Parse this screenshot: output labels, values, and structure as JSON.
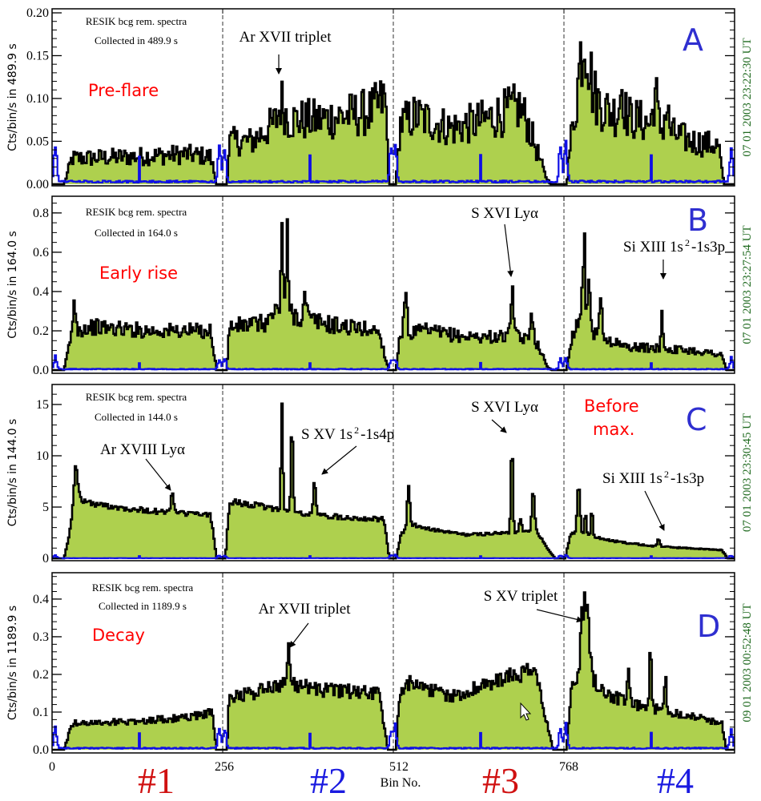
{
  "colors": {
    "fill": "#aed04e",
    "line": "#000000",
    "background": "#1010e6",
    "phase": "#ff0000",
    "letter": "#2f2fd0",
    "time": "#1f6a1f",
    "chan_odd": "#d01010",
    "chan_even": "#1a1ae0"
  },
  "x_axis": {
    "ticks": [
      "0",
      "256",
      "512",
      "768"
    ],
    "label": "Bin No.",
    "channels": [
      "#1",
      "#2",
      "#3",
      "#4"
    ]
  },
  "chart_data": [
    {
      "panel": "A",
      "type": "area",
      "phase": "Pre-flare",
      "info_line1": "RESIK bcg rem. spectra",
      "info_line2": "Collected in   489.9 s",
      "ylabel": "Cts/bin/s in   489.9 s",
      "right_label": "07 01 2003      23:22:30 UT",
      "xlim": [
        0,
        1024
      ],
      "xticks": [
        0,
        256,
        512,
        768
      ],
      "dividers": [
        256,
        512,
        768
      ],
      "ylim": [
        -0.002,
        0.2047
      ],
      "yticks": [
        0.0,
        0.05,
        0.1,
        0.15,
        0.2
      ],
      "ytick_labels": [
        "0.00",
        "0.05",
        "0.10",
        "0.15",
        "0.20"
      ],
      "yminor": 0.01,
      "envelope": [
        [
          [
            18,
            0
          ],
          [
            30,
            0.03
          ],
          [
            120,
            0.032
          ],
          [
            200,
            0.035
          ],
          [
            238,
            0.032
          ],
          [
            247,
            0
          ]
        ],
        [
          [
            262,
            0
          ],
          [
            266,
            0.05
          ],
          [
            300,
            0.05
          ],
          [
            340,
            0.075
          ],
          [
            400,
            0.075
          ],
          [
            480,
            0.085
          ],
          [
            500,
            0.1
          ],
          [
            506,
            0
          ]
        ],
        [
          [
            516,
            0
          ],
          [
            522,
            0.07
          ],
          [
            545,
            0.08
          ],
          [
            600,
            0.065
          ],
          [
            650,
            0.075
          ],
          [
            700,
            0.09
          ],
          [
            712,
            0.075
          ],
          [
            740,
            0.01
          ],
          [
            748,
            0
          ]
        ],
        [
          [
            772,
            0
          ],
          [
            778,
            0.05
          ],
          [
            792,
            0.12
          ],
          [
            815,
            0.1
          ],
          [
            835,
            0.085
          ],
          [
            880,
            0.075
          ],
          [
            960,
            0.05
          ],
          [
            1000,
            0.045
          ],
          [
            1008,
            0
          ]
        ]
      ],
      "peaks": [
        [
          345,
          0.02,
          4
        ],
        [
          800,
          0.06,
          6
        ],
        [
          855,
          0.035,
          3
        ],
        [
          905,
          0.04,
          3
        ],
        [
          922,
          0.025,
          3
        ]
      ],
      "noise": 0.28,
      "bg": {
        "level": 0.003,
        "edge_spike": 0.055,
        "mid_spike": 0.03
      },
      "annotations": [
        {
          "text": "Ar XVII triplet",
          "bin": 345
        }
      ]
    },
    {
      "panel": "B",
      "type": "area",
      "phase": "Early rise",
      "info_line1": "RESIK bcg rem. spectra",
      "info_line2": "Collected in   164.0 s",
      "ylabel": "Cts/bin/s in   164.0 s",
      "right_label": "07 01 2003      23:27:54 UT",
      "xlim": [
        0,
        1024
      ],
      "xticks": [
        0,
        256,
        512,
        768
      ],
      "dividers": [
        256,
        512,
        768
      ],
      "ylim": [
        -0.016,
        0.885
      ],
      "yticks": [
        0.0,
        0.2,
        0.4,
        0.6,
        0.8
      ],
      "ytick_labels": [
        "0.0",
        "0.2",
        "0.4",
        "0.6",
        "0.8"
      ],
      "yminor": 0.05,
      "envelope": [
        [
          [
            18,
            0
          ],
          [
            30,
            0.2
          ],
          [
            60,
            0.22
          ],
          [
            150,
            0.2
          ],
          [
            238,
            0.2
          ],
          [
            247,
            0
          ]
        ],
        [
          [
            262,
            0
          ],
          [
            266,
            0.22
          ],
          [
            320,
            0.24
          ],
          [
            345,
            0.33
          ],
          [
            370,
            0.27
          ],
          [
            420,
            0.23
          ],
          [
            490,
            0.2
          ],
          [
            505,
            0
          ]
        ],
        [
          [
            516,
            0
          ],
          [
            522,
            0.18
          ],
          [
            560,
            0.2
          ],
          [
            620,
            0.17
          ],
          [
            700,
            0.17
          ],
          [
            730,
            0.13
          ],
          [
            742,
            0.02
          ],
          [
            750,
            0
          ]
        ],
        [
          [
            772,
            0
          ],
          [
            778,
            0.15
          ],
          [
            795,
            0.3
          ],
          [
            815,
            0.18
          ],
          [
            860,
            0.12
          ],
          [
            960,
            0.1
          ],
          [
            1005,
            0.08
          ],
          [
            1012,
            0
          ]
        ]
      ],
      "peaks": [
        [
          34,
          0.14,
          2
        ],
        [
          345,
          0.45,
          1.5
        ],
        [
          353,
          0.35,
          1.5
        ],
        [
          380,
          0.12,
          2
        ],
        [
          530,
          0.25,
          2
        ],
        [
          690,
          0.27,
          2
        ],
        [
          720,
          0.18,
          2
        ],
        [
          798,
          0.35,
          2
        ],
        [
          806,
          0.2,
          2
        ],
        [
          823,
          0.28,
          1.5
        ],
        [
          915,
          0.2,
          1.5
        ]
      ],
      "noise": 0.16,
      "bg": {
        "level": 0.005,
        "edge_spike": 0.07,
        "mid_spike": 0.03
      },
      "annotations": [
        {
          "text": "S XVI Lyα",
          "bin": 690
        },
        {
          "text_parts": [
            "Si XIII 1s",
            "2",
            "-1s3p"
          ],
          "bin": 915
        }
      ]
    },
    {
      "panel": "C",
      "type": "area",
      "phase_line1": "Before",
      "phase_line2": "max.",
      "info_line1": "RESIK bcg rem. spectra",
      "info_line2": "Collected in   144.0 s",
      "ylabel": "Cts/bin/s in   144.0 s",
      "right_label": "07 01 2003      23:30:45 UT",
      "xlim": [
        0,
        1024
      ],
      "xticks": [
        0,
        256,
        512,
        768
      ],
      "dividers": [
        256,
        512,
        768
      ],
      "ylim": [
        -0.23,
        16.95
      ],
      "yticks": [
        0,
        5,
        10,
        15
      ],
      "ytick_labels": [
        "0",
        "5",
        "10",
        "15"
      ],
      "yminor": 1,
      "envelope": [
        [
          [
            18,
            0
          ],
          [
            28,
            3
          ],
          [
            36,
            6
          ],
          [
            60,
            5.3
          ],
          [
            150,
            4.6
          ],
          [
            238,
            4.2
          ],
          [
            247,
            0
          ]
        ],
        [
          [
            260,
            0
          ],
          [
            266,
            5.5
          ],
          [
            290,
            5.3
          ],
          [
            330,
            4.9
          ],
          [
            380,
            4.3
          ],
          [
            440,
            4.0
          ],
          [
            498,
            3.8
          ],
          [
            506,
            0
          ]
        ],
        [
          [
            516,
            0
          ],
          [
            524,
            2.5
          ],
          [
            545,
            3.2
          ],
          [
            570,
            2.8
          ],
          [
            620,
            2.3
          ],
          [
            690,
            2.5
          ],
          [
            728,
            2.6
          ],
          [
            745,
            0.8
          ],
          [
            755,
            0
          ]
        ],
        [
          [
            770,
            0
          ],
          [
            778,
            2.5
          ],
          [
            800,
            2.3
          ],
          [
            840,
            1.7
          ],
          [
            900,
            1.2
          ],
          [
            1005,
            0.8
          ],
          [
            1014,
            0
          ]
        ]
      ],
      "peaks": [
        [
          35,
          3,
          3
        ],
        [
          180,
          2,
          2
        ],
        [
          345,
          9.8,
          1.5
        ],
        [
          360,
          9,
          1.5
        ],
        [
          394,
          3.2,
          2
        ],
        [
          535,
          4.2,
          2
        ],
        [
          690,
          9.2,
          1.5
        ],
        [
          703,
          1.5,
          2
        ],
        [
          722,
          4.3,
          2
        ],
        [
          790,
          4.8,
          2
        ],
        [
          800,
          2.2,
          1.5
        ],
        [
          810,
          3,
          1.2
        ],
        [
          910,
          0.7,
          2
        ]
      ],
      "noise": 0.05,
      "bg": {
        "level": 0.02,
        "edge_spike": 0.35,
        "mid_spike": 0.2
      },
      "annotations": [
        {
          "text": "Ar XVIII Lyα",
          "bin": 180
        },
        {
          "text_parts": [
            "S XV 1s",
            "2",
            "-1s4p"
          ],
          "bin": 394
        },
        {
          "text": "S XVI Lyα",
          "bin": 690
        },
        {
          "text_parts": [
            "Si XIII 1s",
            "2",
            "-1s3p"
          ],
          "bin": 910
        }
      ]
    },
    {
      "panel": "D",
      "type": "area",
      "phase": "Decay",
      "info_line1": "RESIK bcg rem. spectra",
      "info_line2": "Collected in  1189.9 s",
      "ylabel": "Cts/bin/s in   1189.9 s",
      "right_label": "09 01 2003      00:52:48 UT",
      "xlim": [
        0,
        1024
      ],
      "xticks": [
        0,
        256,
        512,
        768
      ],
      "dividers": [
        256,
        512,
        768
      ],
      "ylim": [
        -0.0085,
        0.47
      ],
      "yticks": [
        0.0,
        0.1,
        0.2,
        0.3,
        0.4
      ],
      "ytick_labels": [
        "0.0",
        "0.1",
        "0.2",
        "0.3",
        "0.4"
      ],
      "yminor": 0.02,
      "envelope": [
        [
          [
            18,
            0
          ],
          [
            30,
            0.07
          ],
          [
            120,
            0.075
          ],
          [
            200,
            0.085
          ],
          [
            240,
            0.1
          ],
          [
            247,
            0
          ]
        ],
        [
          [
            262,
            0
          ],
          [
            266,
            0.14
          ],
          [
            300,
            0.15
          ],
          [
            350,
            0.18
          ],
          [
            400,
            0.16
          ],
          [
            490,
            0.15
          ],
          [
            504,
            0
          ]
        ],
        [
          [
            516,
            0
          ],
          [
            522,
            0.16
          ],
          [
            540,
            0.18
          ],
          [
            600,
            0.14
          ],
          [
            680,
            0.19
          ],
          [
            725,
            0.21
          ],
          [
            745,
            0.05
          ],
          [
            752,
            0
          ]
        ],
        [
          [
            772,
            0
          ],
          [
            778,
            0.15
          ],
          [
            795,
            0.22
          ],
          [
            830,
            0.15
          ],
          [
            870,
            0.12
          ],
          [
            960,
            0.09
          ],
          [
            1005,
            0.07
          ],
          [
            1012,
            0
          ]
        ]
      ],
      "peaks": [
        [
          355,
          0.09,
          2
        ],
        [
          800,
          0.2,
          5
        ],
        [
          865,
          0.09,
          1.5
        ],
        [
          898,
          0.15,
          1.5
        ],
        [
          920,
          0.1,
          1.5
        ]
      ],
      "noise": 0.1,
      "bg": {
        "level": 0.004,
        "edge_spike": 0.07,
        "mid_spike": 0.04
      },
      "annotations": [
        {
          "text": "Ar XVII triplet",
          "bin": 355
        },
        {
          "text": "S XV triplet",
          "bin": 800
        }
      ]
    }
  ]
}
